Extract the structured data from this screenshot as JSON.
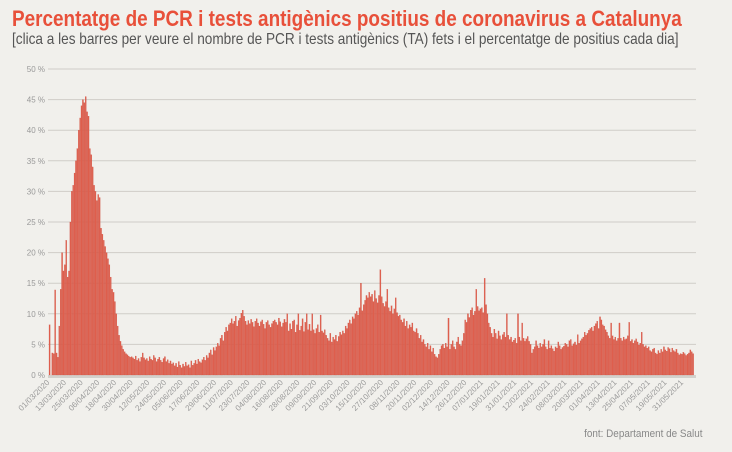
{
  "title": "Percentatge de PCR i tests antigènics positius de coronavirus a Catalunya",
  "subtitle": "[clica a les barres per veure el nombre de PCR i tests antigènics (TA) fets i el percentatge de positius cada dia]",
  "source": "font: Departament de Salut",
  "colors": {
    "bar": "#e0604e",
    "bar_edge": "#c9483a",
    "title": "#e8503a",
    "grid": "#cfcdc8"
  },
  "chart_data": {
    "type": "bar",
    "title": "Percentatge de PCR i tests antigènics positius de coronavirus a Catalunya",
    "xlabel": "",
    "ylabel": "",
    "ylim": [
      0,
      50
    ],
    "y_ticks": [
      "0 %",
      "5 %",
      "10 %",
      "15 %",
      "20 %",
      "25 %",
      "30 %",
      "35 %",
      "40 %",
      "45 %",
      "50 %"
    ],
    "y_tick_values": [
      0,
      5,
      10,
      15,
      20,
      25,
      30,
      35,
      40,
      45,
      50
    ],
    "grid": true,
    "x_interval": "daily",
    "x_tick_every_days": 12,
    "x_ticks": [
      "01/03/2020",
      "13/03/2020",
      "25/03/2020",
      "06/04/2020",
      "18/04/2020",
      "30/04/2020",
      "12/05/2020",
      "24/05/2020",
      "05/06/2020",
      "17/06/2020",
      "29/06/2020",
      "11/07/2020",
      "23/07/2020",
      "04/08/2020",
      "16/08/2020",
      "28/08/2020",
      "09/09/2020",
      "21/09/2020",
      "03/10/2020",
      "15/10/2020",
      "27/10/2020",
      "08/11/2020",
      "20/11/2020",
      "02/12/2020",
      "14/12/2020",
      "26/12/2020",
      "07/01/2021",
      "19/01/2021",
      "31/01/2021",
      "12/02/2021",
      "24/02/2021",
      "08/03/2021",
      "20/03/2021",
      "01/04/2021",
      "13/04/2021",
      "25/04/2021",
      "07/05/2021",
      "19/05/2021",
      "31/05/2021"
    ],
    "values": [
      8.2,
      0,
      3.6,
      3.5,
      13.9,
      3.6,
      2.9,
      8,
      14,
      20,
      17,
      18,
      22,
      16,
      17,
      25,
      30,
      31,
      33,
      35,
      37,
      40,
      42,
      44,
      45,
      44.5,
      45.5,
      43,
      42.3,
      37,
      36,
      34,
      31,
      30,
      28.5,
      29.5,
      29,
      24,
      23,
      22,
      21,
      20,
      19,
      18,
      16,
      14,
      13.5,
      12,
      10,
      8,
      6.5,
      5.5,
      4.8,
      4.2,
      3.8,
      3.5,
      3.3,
      3.1,
      2.9,
      3,
      2.8,
      2.6,
      3.1,
      2.4,
      2.7,
      2.2,
      2.9,
      3.6,
      2.8,
      2.5,
      2.7,
      2.3,
      3.0,
      2.6,
      2.4,
      3.2,
      2.8,
      2.2,
      2.6,
      2.9,
      2.4,
      2.1,
      2.7,
      3.0,
      2.2,
      2.5,
      1.9,
      2.3,
      1.8,
      2.0,
      1.5,
      1.9,
      1.3,
      2.2,
      1.6,
      1.2,
      1.8,
      1.4,
      2.1,
      1.5,
      1.7,
      1.2,
      2.3,
      1.6,
      1.9,
      2.4,
      1.8,
      2.6,
      2.2,
      2.0,
      2.5,
      2.9,
      2.4,
      3.2,
      2.8,
      3.6,
      4.1,
      3.3,
      4.5,
      4.0,
      4.6,
      5.2,
      4.8,
      6.0,
      6.5,
      5.6,
      7.0,
      7.8,
      7.2,
      8.2,
      8.5,
      9.2,
      8.4,
      8.8,
      9.6,
      8.0,
      8.9,
      9.3,
      10.1,
      10.6,
      9.6,
      8.8,
      8.2,
      8.9,
      8.4,
      9.1,
      8.6,
      7.9,
      8.8,
      9.2,
      8.5,
      8.0,
      8.7,
      9.0,
      8.3,
      7.6,
      8.6,
      8.9,
      8.2,
      7.8,
      8.4,
      8.8,
      9.0,
      8.6,
      8.2,
      9.3,
      8.7,
      7.9,
      8.5,
      9.1,
      8.6,
      10.0,
      7.2,
      8.4,
      7.5,
      8.8,
      9.0,
      7.0,
      8.2,
      10.0,
      7.3,
      8.0,
      9.2,
      7.1,
      8.6,
      10.0,
      7.4,
      8.3,
      7.2,
      10.0,
      7.4,
      6.8,
      7.6,
      8.2,
      7.0,
      9.8,
      7.2,
      6.9,
      7.4,
      6.5,
      6.0,
      5.6,
      6.8,
      5.4,
      6.2,
      5.8,
      6.5,
      5.5,
      6.3,
      7.0,
      6.6,
      7.2,
      6.8,
      8.0,
      7.6,
      8.5,
      9.0,
      8.4,
      9.5,
      9.2,
      10.0,
      10.4,
      9.8,
      11.0,
      15.0,
      10.5,
      11.5,
      12.2,
      13.0,
      12.6,
      13.5,
      12.8,
      13.2,
      12.0,
      13.8,
      12.5,
      11.8,
      13.0,
      17.2,
      12.8,
      11.7,
      11.2,
      12.0,
      14.0,
      11.0,
      10.4,
      11.3,
      10.0,
      10.8,
      12.6,
      10.2,
      9.6,
      9.8,
      9.0,
      8.6,
      9.2,
      8.0,
      8.8,
      7.6,
      8.2,
      7.8,
      8.5,
      7.2,
      7.0,
      7.6,
      6.8,
      6.0,
      6.5,
      5.4,
      5.8,
      5.0,
      4.6,
      5.2,
      4.2,
      4.8,
      3.8,
      4.4,
      3.4,
      3.0,
      2.8,
      3.4,
      4.2,
      4.8,
      5.0,
      4.4,
      5.2,
      4.6,
      9.3,
      4.2,
      5.0,
      5.6,
      4.6,
      4.2,
      5.4,
      6.2,
      5.0,
      4.8,
      5.6,
      6.8,
      9.0,
      8.6,
      10.0,
      9.4,
      10.6,
      11.0,
      9.8,
      10.4,
      14.0,
      11.2,
      10.5,
      10.8,
      11.0,
      10.2,
      15.8,
      11.5,
      10.0,
      8.5,
      7.8,
      6.8,
      6.2,
      7.5,
      6.8,
      5.9,
      7.2,
      6.4,
      5.8,
      6.6,
      7.0,
      6.2,
      10.0,
      6.5,
      5.8,
      6.2,
      5.4,
      5.7,
      6.0,
      5.2,
      10.0,
      6.2,
      5.6,
      8.5,
      6.0,
      5.5,
      5.9,
      6.3,
      5.5,
      5.0,
      3.6,
      4.2,
      4.6,
      5.6,
      4.8,
      4.4,
      5.2,
      4.6,
      5.0,
      5.8,
      4.6,
      4.2,
      5.6,
      4.4,
      4.8,
      4.3,
      3.9,
      4.6,
      4.4,
      5.4,
      4.8,
      4.2,
      4.5,
      4.7,
      5.2,
      5.0,
      4.6,
      5.6,
      5.8,
      4.8,
      5.1,
      5.4,
      4.9,
      6.6,
      5.2,
      5.6,
      5.9,
      6.2,
      7.0,
      6.5,
      6.8,
      7.3,
      7.6,
      7.8,
      7.2,
      8.0,
      8.4,
      8.8,
      7.6,
      9.5,
      9.0,
      8.2,
      8.0,
      7.4,
      7.0,
      6.4,
      6.0,
      8.5,
      6.4,
      5.8,
      6.2,
      5.6,
      6.0,
      8.5,
      6.0,
      5.6,
      6.2,
      5.8,
      5.9,
      6.4,
      8.6,
      5.5,
      5.8,
      5.2,
      5.6,
      5.9,
      5.4,
      4.9,
      5.2,
      7.0,
      5.0,
      4.6,
      4.8,
      4.4,
      4.6,
      4.0,
      3.8,
      4.2,
      4.4,
      3.6,
      3.4,
      4.0,
      3.6,
      4.2,
      3.8,
      4.6,
      4.1,
      3.9,
      4.5,
      4.3,
      3.7,
      4.4,
      4.0,
      3.8,
      4.2,
      3.6,
      3.3,
      3.5,
      3.4,
      3.7,
      3.5,
      3.2,
      3.4,
      3.6,
      4.1,
      3.8,
      3.5
    ]
  }
}
